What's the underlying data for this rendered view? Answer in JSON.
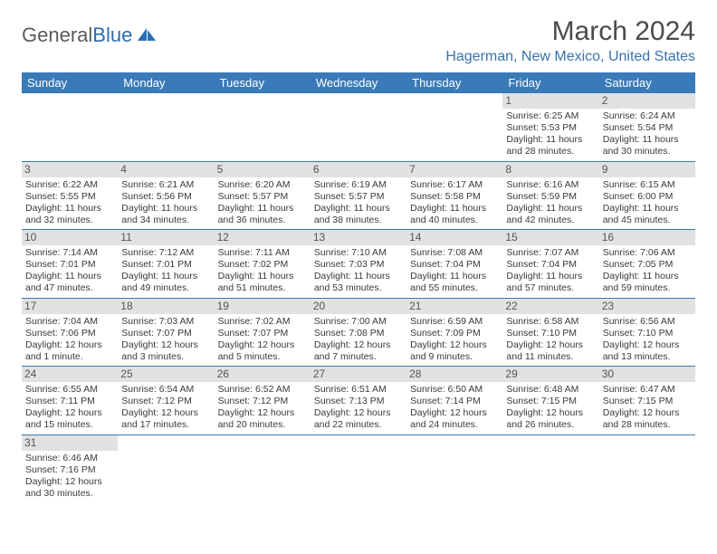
{
  "brand_gray": "General",
  "brand_blue": "Blue",
  "brand_gray_color": "#5a5a5a",
  "brand_blue_color": "#2a6db3",
  "month_title": "March 2024",
  "location": "Hagerman, New Mexico, United States",
  "header_bg": "#3a7ab8",
  "header_fg": "#ffffff",
  "daynum_bg": "#e2e2e2",
  "rule_color": "#3a7ab8",
  "days_of_week": [
    "Sunday",
    "Monday",
    "Tuesday",
    "Wednesday",
    "Thursday",
    "Friday",
    "Saturday"
  ],
  "weeks": [
    [
      null,
      null,
      null,
      null,
      null,
      {
        "n": "1",
        "sr": "Sunrise: 6:25 AM",
        "ss": "Sunset: 5:53 PM",
        "d1": "Daylight: 11 hours",
        "d2": "and 28 minutes."
      },
      {
        "n": "2",
        "sr": "Sunrise: 6:24 AM",
        "ss": "Sunset: 5:54 PM",
        "d1": "Daylight: 11 hours",
        "d2": "and 30 minutes."
      }
    ],
    [
      {
        "n": "3",
        "sr": "Sunrise: 6:22 AM",
        "ss": "Sunset: 5:55 PM",
        "d1": "Daylight: 11 hours",
        "d2": "and 32 minutes."
      },
      {
        "n": "4",
        "sr": "Sunrise: 6:21 AM",
        "ss": "Sunset: 5:56 PM",
        "d1": "Daylight: 11 hours",
        "d2": "and 34 minutes."
      },
      {
        "n": "5",
        "sr": "Sunrise: 6:20 AM",
        "ss": "Sunset: 5:57 PM",
        "d1": "Daylight: 11 hours",
        "d2": "and 36 minutes."
      },
      {
        "n": "6",
        "sr": "Sunrise: 6:19 AM",
        "ss": "Sunset: 5:57 PM",
        "d1": "Daylight: 11 hours",
        "d2": "and 38 minutes."
      },
      {
        "n": "7",
        "sr": "Sunrise: 6:17 AM",
        "ss": "Sunset: 5:58 PM",
        "d1": "Daylight: 11 hours",
        "d2": "and 40 minutes."
      },
      {
        "n": "8",
        "sr": "Sunrise: 6:16 AM",
        "ss": "Sunset: 5:59 PM",
        "d1": "Daylight: 11 hours",
        "d2": "and 42 minutes."
      },
      {
        "n": "9",
        "sr": "Sunrise: 6:15 AM",
        "ss": "Sunset: 6:00 PM",
        "d1": "Daylight: 11 hours",
        "d2": "and 45 minutes."
      }
    ],
    [
      {
        "n": "10",
        "sr": "Sunrise: 7:14 AM",
        "ss": "Sunset: 7:01 PM",
        "d1": "Daylight: 11 hours",
        "d2": "and 47 minutes."
      },
      {
        "n": "11",
        "sr": "Sunrise: 7:12 AM",
        "ss": "Sunset: 7:01 PM",
        "d1": "Daylight: 11 hours",
        "d2": "and 49 minutes."
      },
      {
        "n": "12",
        "sr": "Sunrise: 7:11 AM",
        "ss": "Sunset: 7:02 PM",
        "d1": "Daylight: 11 hours",
        "d2": "and 51 minutes."
      },
      {
        "n": "13",
        "sr": "Sunrise: 7:10 AM",
        "ss": "Sunset: 7:03 PM",
        "d1": "Daylight: 11 hours",
        "d2": "and 53 minutes."
      },
      {
        "n": "14",
        "sr": "Sunrise: 7:08 AM",
        "ss": "Sunset: 7:04 PM",
        "d1": "Daylight: 11 hours",
        "d2": "and 55 minutes."
      },
      {
        "n": "15",
        "sr": "Sunrise: 7:07 AM",
        "ss": "Sunset: 7:04 PM",
        "d1": "Daylight: 11 hours",
        "d2": "and 57 minutes."
      },
      {
        "n": "16",
        "sr": "Sunrise: 7:06 AM",
        "ss": "Sunset: 7:05 PM",
        "d1": "Daylight: 11 hours",
        "d2": "and 59 minutes."
      }
    ],
    [
      {
        "n": "17",
        "sr": "Sunrise: 7:04 AM",
        "ss": "Sunset: 7:06 PM",
        "d1": "Daylight: 12 hours",
        "d2": "and 1 minute."
      },
      {
        "n": "18",
        "sr": "Sunrise: 7:03 AM",
        "ss": "Sunset: 7:07 PM",
        "d1": "Daylight: 12 hours",
        "d2": "and 3 minutes."
      },
      {
        "n": "19",
        "sr": "Sunrise: 7:02 AM",
        "ss": "Sunset: 7:07 PM",
        "d1": "Daylight: 12 hours",
        "d2": "and 5 minutes."
      },
      {
        "n": "20",
        "sr": "Sunrise: 7:00 AM",
        "ss": "Sunset: 7:08 PM",
        "d1": "Daylight: 12 hours",
        "d2": "and 7 minutes."
      },
      {
        "n": "21",
        "sr": "Sunrise: 6:59 AM",
        "ss": "Sunset: 7:09 PM",
        "d1": "Daylight: 12 hours",
        "d2": "and 9 minutes."
      },
      {
        "n": "22",
        "sr": "Sunrise: 6:58 AM",
        "ss": "Sunset: 7:10 PM",
        "d1": "Daylight: 12 hours",
        "d2": "and 11 minutes."
      },
      {
        "n": "23",
        "sr": "Sunrise: 6:56 AM",
        "ss": "Sunset: 7:10 PM",
        "d1": "Daylight: 12 hours",
        "d2": "and 13 minutes."
      }
    ],
    [
      {
        "n": "24",
        "sr": "Sunrise: 6:55 AM",
        "ss": "Sunset: 7:11 PM",
        "d1": "Daylight: 12 hours",
        "d2": "and 15 minutes."
      },
      {
        "n": "25",
        "sr": "Sunrise: 6:54 AM",
        "ss": "Sunset: 7:12 PM",
        "d1": "Daylight: 12 hours",
        "d2": "and 17 minutes."
      },
      {
        "n": "26",
        "sr": "Sunrise: 6:52 AM",
        "ss": "Sunset: 7:12 PM",
        "d1": "Daylight: 12 hours",
        "d2": "and 20 minutes."
      },
      {
        "n": "27",
        "sr": "Sunrise: 6:51 AM",
        "ss": "Sunset: 7:13 PM",
        "d1": "Daylight: 12 hours",
        "d2": "and 22 minutes."
      },
      {
        "n": "28",
        "sr": "Sunrise: 6:50 AM",
        "ss": "Sunset: 7:14 PM",
        "d1": "Daylight: 12 hours",
        "d2": "and 24 minutes."
      },
      {
        "n": "29",
        "sr": "Sunrise: 6:48 AM",
        "ss": "Sunset: 7:15 PM",
        "d1": "Daylight: 12 hours",
        "d2": "and 26 minutes."
      },
      {
        "n": "30",
        "sr": "Sunrise: 6:47 AM",
        "ss": "Sunset: 7:15 PM",
        "d1": "Daylight: 12 hours",
        "d2": "and 28 minutes."
      }
    ],
    [
      {
        "n": "31",
        "sr": "Sunrise: 6:46 AM",
        "ss": "Sunset: 7:16 PM",
        "d1": "Daylight: 12 hours",
        "d2": "and 30 minutes."
      },
      null,
      null,
      null,
      null,
      null,
      null
    ]
  ]
}
